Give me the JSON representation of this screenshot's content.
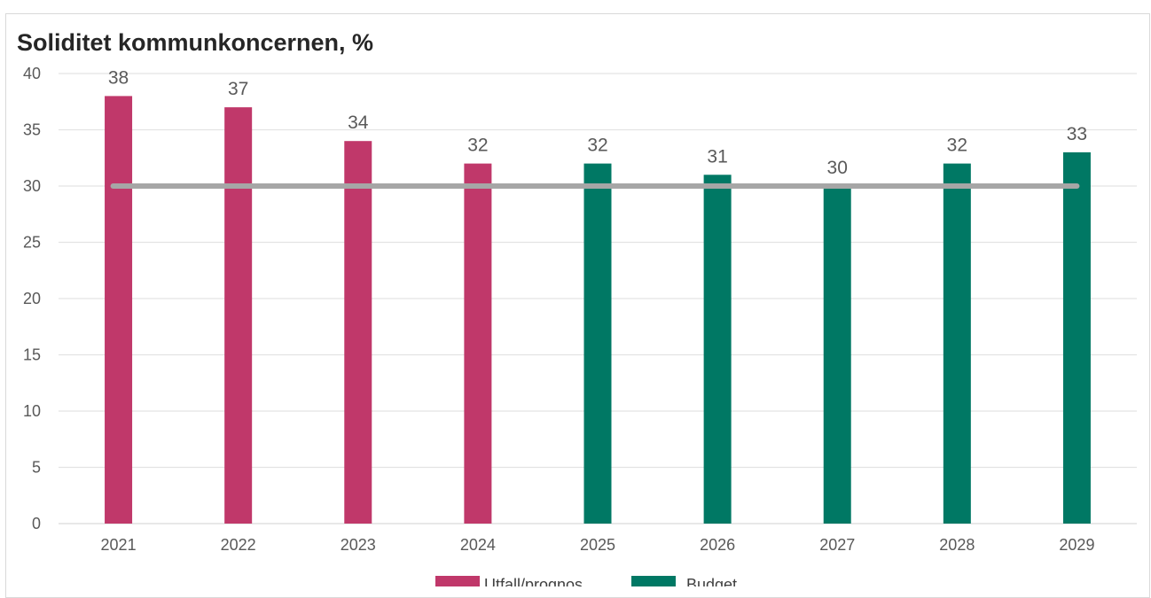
{
  "chart_data": {
    "type": "bar",
    "title": "Soliditet kommunkoncernen, %",
    "xlabel": "",
    "ylabel": "",
    "ylim": [
      0,
      40
    ],
    "yticks": [
      0,
      5,
      10,
      15,
      20,
      25,
      30,
      35,
      40
    ],
    "categories": [
      "2021",
      "2022",
      "2023",
      "2024",
      "2025",
      "2026",
      "2027",
      "2028",
      "2029"
    ],
    "series": [
      {
        "name": "Utfall/prognos",
        "color": "#c0386a",
        "values": [
          38,
          37,
          34,
          32,
          null,
          null,
          null,
          null,
          null
        ]
      },
      {
        "name": "Budget",
        "color": "#007864",
        "values": [
          null,
          null,
          null,
          null,
          32,
          31,
          30,
          32,
          33
        ]
      }
    ],
    "reference_line": {
      "value": 30,
      "color": "#a6a6a6",
      "from": "2021",
      "to": "2029"
    },
    "grid": true,
    "legend": "bottom"
  }
}
